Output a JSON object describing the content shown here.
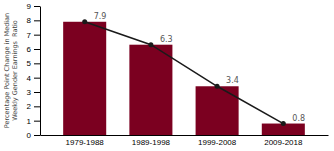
{
  "chart_data": {
    "type": "bar",
    "categories": [
      "1979-1988",
      "1989-1998",
      "1999-2008",
      "2009-2018"
    ],
    "series": [
      {
        "type": "bar",
        "color": "#7b0020",
        "values": [
          7.9,
          6.3,
          3.4,
          0.8
        ]
      },
      {
        "type": "line",
        "color": "#1a1a1a",
        "marker": "circle",
        "values": [
          7.9,
          6.3,
          3.4,
          0.8
        ]
      }
    ],
    "y_label": [
      "Percentage Point Change in Median",
      "Weekly Gender Earnings  Ratio"
    ],
    "ylim": [
      0,
      9
    ],
    "yticks": [
      0,
      1,
      2,
      3,
      4,
      5,
      6,
      7,
      8,
      9
    ],
    "data_labels": true,
    "grid": false
  }
}
